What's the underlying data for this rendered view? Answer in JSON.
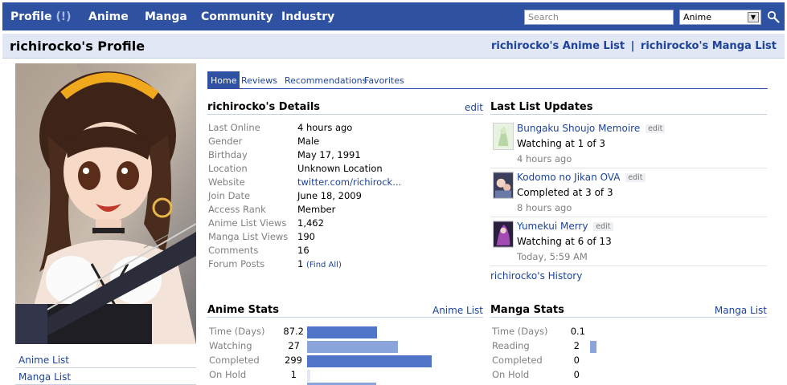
{
  "nav": {
    "profile_label": "Profile",
    "profile_count": "(!)",
    "anime": "Anime",
    "manga": "Manga",
    "community": "Community",
    "industry": "Industry",
    "search_placeholder": "Search",
    "search_type": "Anime"
  },
  "header": {
    "title": "richirocko's Profile",
    "anime_list_link": "richirocko's Anime List",
    "separator": "|",
    "manga_list_link": "richirocko's Manga List"
  },
  "sidebar": {
    "links": [
      "Anime List",
      "Manga List"
    ]
  },
  "tabs": [
    "Home",
    "Reviews",
    "Recommendations",
    "Favorites"
  ],
  "details": {
    "heading": "richirocko's Details",
    "edit_label": "edit",
    "rows": [
      {
        "label": "Last Online",
        "value": "4 hours ago"
      },
      {
        "label": "Gender",
        "value": "Male"
      },
      {
        "label": "Birthday",
        "value": "May 17, 1991"
      },
      {
        "label": "Location",
        "value": "Unknown Location"
      },
      {
        "label": "Website",
        "value": "twitter.com/richirock..."
      },
      {
        "label": "Join Date",
        "value": "June 18, 2009"
      },
      {
        "label": "Access Rank",
        "value": "Member"
      },
      {
        "label": "Anime List Views",
        "value": "1,462"
      },
      {
        "label": "Manga List Views",
        "value": "190"
      },
      {
        "label": "Comments",
        "value": "16"
      },
      {
        "label": "Forum Posts",
        "value": "1"
      }
    ],
    "find_all": "(Find All)"
  },
  "updates": {
    "heading": "Last List Updates",
    "edit_label": "edit",
    "items": [
      {
        "title": "Bungaku Shoujo Memoire",
        "status": "Watching at 1 of 3",
        "time": "4 hours ago"
      },
      {
        "title": "Kodomo no Jikan OVA",
        "status": "Completed at 3 of 3",
        "time": "8 hours ago"
      },
      {
        "title": "Yumekui Merry",
        "status": "Watching at 6 of 13",
        "time": "Today, 5:59 AM"
      }
    ],
    "history_link": "richirocko's History"
  },
  "anime_stats": {
    "heading": "Anime Stats",
    "link": "Anime List",
    "rows": [
      {
        "label": "Time (Days)",
        "value": "87.2",
        "bar": 0.56
      },
      {
        "label": "Watching",
        "value": "27",
        "bar": 0.73
      },
      {
        "label": "Completed",
        "value": "299",
        "bar": 1.0
      },
      {
        "label": "On Hold",
        "value": "1",
        "bar": 0.02
      }
    ]
  },
  "manga_stats": {
    "heading": "Manga Stats",
    "link": "Manga List",
    "rows": [
      {
        "label": "Time (Days)",
        "value": "0.1",
        "bar": 0.0
      },
      {
        "label": "Reading",
        "value": "2",
        "bar": 0.05
      },
      {
        "label": "Completed",
        "value": "0",
        "bar": 0.0
      },
      {
        "label": "On Hold",
        "value": "0",
        "bar": 0.0
      }
    ]
  },
  "colors": {
    "nav_bg": "#2e51a2",
    "link": "#1d439b",
    "header_bg": "#e1e7f5",
    "bar_dark": "#4f74c8",
    "bar_light": "#8aa4dc",
    "bar_faint": "#e1e7f5"
  }
}
